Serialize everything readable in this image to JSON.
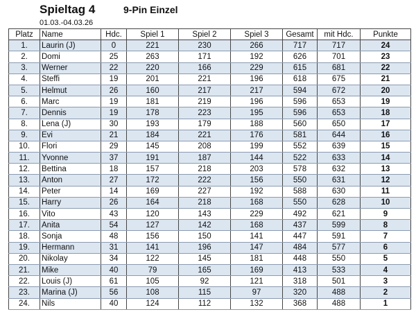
{
  "header": {
    "title": "Spieltag 4",
    "subtitle": "9-Pin Einzel",
    "date": "01.03.-04.03.26"
  },
  "columns": [
    "Platz",
    "Name",
    "Hdc.",
    "Spiel 1",
    "Spiel 2",
    "Spiel 3",
    "Gesamt",
    "mit Hdc.",
    "Punkte"
  ],
  "rows": [
    [
      "1.",
      "Laurin (J)",
      "0",
      "221",
      "230",
      "266",
      "717",
      "717",
      "24"
    ],
    [
      "2.",
      "Domi",
      "25",
      "263",
      "171",
      "192",
      "626",
      "701",
      "23"
    ],
    [
      "3.",
      "Werner",
      "22",
      "220",
      "166",
      "229",
      "615",
      "681",
      "22"
    ],
    [
      "4.",
      "Steffi",
      "19",
      "201",
      "221",
      "196",
      "618",
      "675",
      "21"
    ],
    [
      "5.",
      "Helmut",
      "26",
      "160",
      "217",
      "217",
      "594",
      "672",
      "20"
    ],
    [
      "6.",
      "Marc",
      "19",
      "181",
      "219",
      "196",
      "596",
      "653",
      "19"
    ],
    [
      "7.",
      "Dennis",
      "19",
      "178",
      "223",
      "195",
      "596",
      "653",
      "18"
    ],
    [
      "8.",
      "Lena (J)",
      "30",
      "193",
      "179",
      "188",
      "560",
      "650",
      "17"
    ],
    [
      "9.",
      "Evi",
      "21",
      "184",
      "221",
      "176",
      "581",
      "644",
      "16"
    ],
    [
      "10.",
      "Flori",
      "29",
      "145",
      "208",
      "199",
      "552",
      "639",
      "15"
    ],
    [
      "11.",
      "Yvonne",
      "37",
      "191",
      "187",
      "144",
      "522",
      "633",
      "14"
    ],
    [
      "12.",
      "Bettina",
      "18",
      "157",
      "218",
      "203",
      "578",
      "632",
      "13"
    ],
    [
      "13.",
      "Anton",
      "27",
      "172",
      "222",
      "156",
      "550",
      "631",
      "12"
    ],
    [
      "14.",
      "Peter",
      "14",
      "169",
      "227",
      "192",
      "588",
      "630",
      "11"
    ],
    [
      "15.",
      "Harry",
      "26",
      "164",
      "218",
      "168",
      "550",
      "628",
      "10"
    ],
    [
      "16.",
      "Vito",
      "43",
      "120",
      "143",
      "229",
      "492",
      "621",
      "9"
    ],
    [
      "17.",
      "Anita",
      "54",
      "127",
      "142",
      "168",
      "437",
      "599",
      "8"
    ],
    [
      "18.",
      "Sonja",
      "48",
      "156",
      "150",
      "141",
      "447",
      "591",
      "7"
    ],
    [
      "19.",
      "Hermann",
      "31",
      "141",
      "196",
      "147",
      "484",
      "577",
      "6"
    ],
    [
      "20.",
      "Nikolay",
      "34",
      "122",
      "145",
      "181",
      "448",
      "550",
      "5"
    ],
    [
      "21.",
      "Mike",
      "40",
      "79",
      "165",
      "169",
      "413",
      "533",
      "4"
    ],
    [
      "22.",
      "Louis (J)",
      "61",
      "105",
      "92",
      "121",
      "318",
      "501",
      "3"
    ],
    [
      "23.",
      "Marina (J)",
      "56",
      "108",
      "115",
      "97",
      "320",
      "488",
      "2"
    ],
    [
      "24.",
      "Nils",
      "40",
      "124",
      "112",
      "132",
      "368",
      "488",
      "1"
    ]
  ],
  "colors": {
    "stripe": "#dce6f1",
    "border": "#444444"
  }
}
